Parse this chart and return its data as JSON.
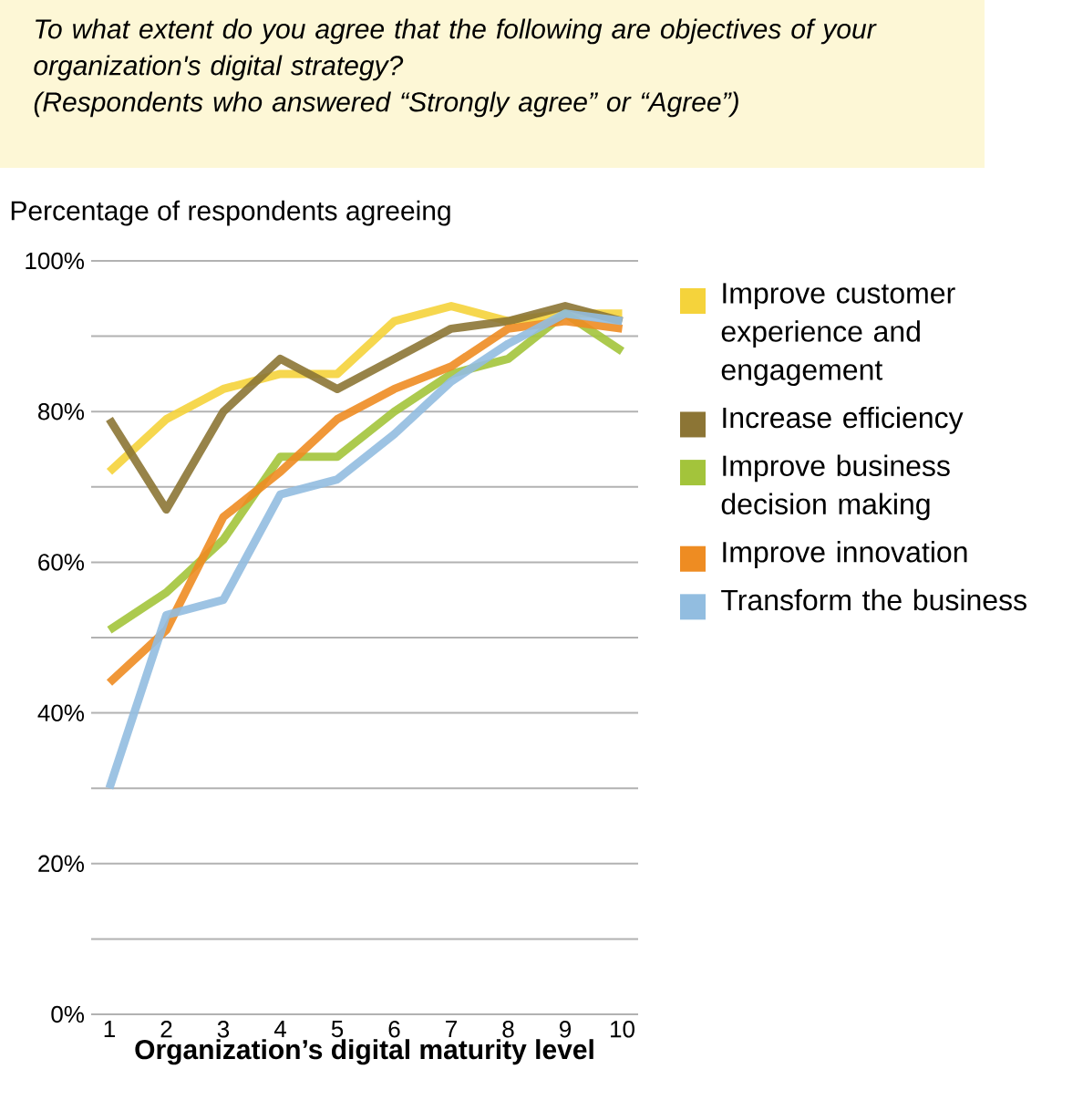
{
  "chart_data": {
    "type": "line",
    "title": "To what extent do you agree that the following are objectives of your organization's digital strategy?",
    "subtitle": "(Respondents who answered “Strongly agree” or “Agree”)",
    "ylabel": "Percentage of respondents agreeing",
    "xlabel": "Organization’s digital maturity level",
    "categories": [
      "1",
      "2",
      "3",
      "4",
      "5",
      "6",
      "7",
      "8",
      "9",
      "10"
    ],
    "series": [
      {
        "name": "Improve customer experience and engagement",
        "color": "#f5d33b",
        "values": [
          72,
          79,
          83,
          85,
          85,
          92,
          94,
          92,
          93,
          93
        ]
      },
      {
        "name": "Increase efficiency",
        "color": "#8c7535",
        "values": [
          79,
          67,
          80,
          87,
          83,
          87,
          91,
          92,
          94,
          92
        ]
      },
      {
        "name": "Improve business decision making",
        "color": "#a3c43b",
        "values": [
          51,
          56,
          63,
          74,
          74,
          80,
          85,
          87,
          93,
          88
        ]
      },
      {
        "name": "Improve innovation",
        "color": "#ee8c22",
        "values": [
          44,
          51,
          66,
          72,
          79,
          83,
          86,
          91,
          92,
          91
        ]
      },
      {
        "name": "Transform the business",
        "color": "#92bde0",
        "values": [
          30,
          53,
          55,
          69,
          71,
          77,
          84,
          89,
          93,
          92
        ]
      }
    ],
    "ylim": [
      0,
      100
    ],
    "yticks": [
      {
        "value": 0,
        "label": "0%"
      },
      {
        "value": 10,
        "label": null
      },
      {
        "value": 20,
        "label": "20%"
      },
      {
        "value": 30,
        "label": null
      },
      {
        "value": 40,
        "label": "40%"
      },
      {
        "value": 50,
        "label": null
      },
      {
        "value": 60,
        "label": "60%"
      },
      {
        "value": 70,
        "label": null
      },
      {
        "value": 80,
        "label": "80%"
      },
      {
        "value": 90,
        "label": null
      },
      {
        "value": 100,
        "label": "100%"
      }
    ],
    "grid": "y",
    "legend": "right",
    "marker": "none",
    "line_style": "solid"
  }
}
